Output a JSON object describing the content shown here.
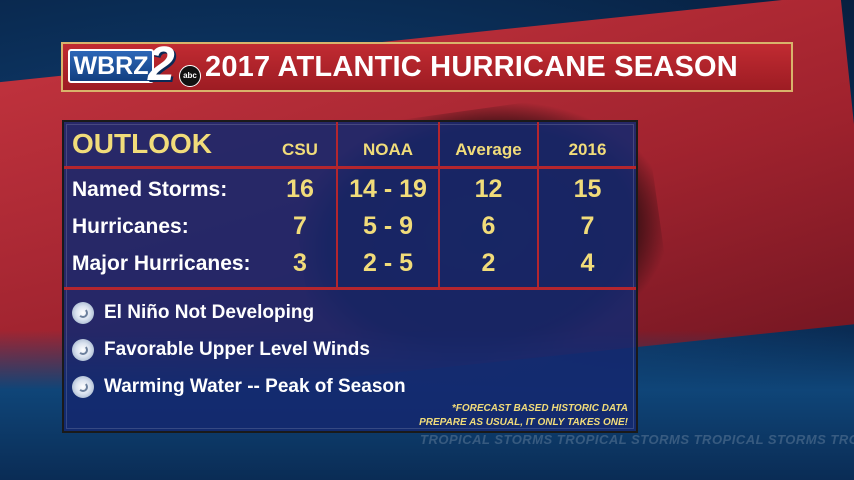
{
  "header": {
    "logo_text": "WBRZ",
    "logo_number": "2",
    "logo_network": "abc",
    "title": "2017 ATLANTIC HURRICANE SEASON"
  },
  "table": {
    "corner_label": "OUTLOOK",
    "columns": [
      "CSU",
      "NOAA",
      "Average",
      "2016"
    ],
    "rows": [
      {
        "label": "Named Storms:",
        "values": [
          "16",
          "14 - 19",
          "12",
          "15"
        ]
      },
      {
        "label": "Hurricanes:",
        "values": [
          "7",
          "5 - 9",
          "6",
          "7"
        ]
      },
      {
        "label": "Major Hurricanes:",
        "values": [
          "3",
          "2 - 5",
          "2",
          "4"
        ]
      }
    ]
  },
  "factors": [
    {
      "icon": "hurricane-icon",
      "text": "El Niño Not Developing"
    },
    {
      "icon": "hurricane-icon",
      "text": "Favorable Upper Level Winds"
    },
    {
      "icon": "hurricane-icon",
      "text": "Warming Water -- Peak of Season"
    }
  ],
  "notes": {
    "line1": "*FORECAST BASED HISTORIC DATA",
    "line2": "PREPARE AS USUAL, IT ONLY TAKES ONE!"
  },
  "background_text": "TROPICAL STORMS TROPICAL STORMS TROPICAL STORMS TRO",
  "colors": {
    "accent_red": "#b4262e",
    "gold": "#f1dc7a",
    "panel_blue": "#14286e"
  }
}
